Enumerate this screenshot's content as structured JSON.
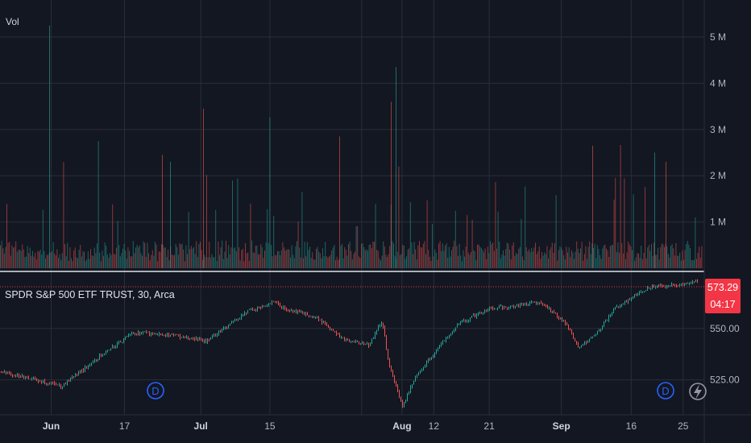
{
  "chart_data": [
    {
      "type": "bar",
      "title": "Vol",
      "y_ticks": [
        "1 M",
        "2 M",
        "3 M",
        "4 M",
        "5 M"
      ],
      "y_tick_values": [
        1000000,
        2000000,
        3000000,
        4000000,
        5000000
      ],
      "ylim": [
        0,
        5800000
      ],
      "grid": true
    },
    {
      "type": "candlestick",
      "title": "SPDR S&P 500 ETF TRUST, 30, Arca",
      "y_ticks": [
        "525.00",
        "550.00"
      ],
      "y_tick_values": [
        525,
        550
      ],
      "ylim": [
        508,
        577
      ],
      "last_price": "573.29",
      "countdown": "04:17",
      "x_ticks": [
        "Jun",
        "17",
        "Jul",
        "15",
        "Aug",
        "12",
        "21",
        "Sep",
        "16",
        "25"
      ],
      "anchors": [
        {
          "t": "May 28",
          "v": 529
        },
        {
          "t": "Jun 5",
          "v": 522
        },
        {
          "t": "Jun 12",
          "v": 536
        },
        {
          "t": "Jun 18",
          "v": 547
        },
        {
          "t": "Jun 20",
          "v": 548
        },
        {
          "t": "Jun 28",
          "v": 546
        },
        {
          "t": "Jul 2",
          "v": 544
        },
        {
          "t": "Jul 5",
          "v": 549
        },
        {
          "t": "Jul 10",
          "v": 558
        },
        {
          "t": "Jul 16",
          "v": 563
        },
        {
          "t": "Jul 17",
          "v": 560
        },
        {
          "t": "Jul 22",
          "v": 556
        },
        {
          "t": "Jul 26",
          "v": 545
        },
        {
          "t": "Jul 30",
          "v": 542
        },
        {
          "t": "Aug 1",
          "v": 554
        },
        {
          "t": "Aug 2",
          "v": 533
        },
        {
          "t": "Aug 5",
          "v": 512
        },
        {
          "t": "Aug 8",
          "v": 527
        },
        {
          "t": "Aug 12",
          "v": 538
        },
        {
          "t": "Aug 16",
          "v": 552
        },
        {
          "t": "Aug 21",
          "v": 560
        },
        {
          "t": "Aug 26",
          "v": 561
        },
        {
          "t": "Aug 30",
          "v": 563
        },
        {
          "t": "Sep 4",
          "v": 552
        },
        {
          "t": "Sep 6",
          "v": 541
        },
        {
          "t": "Sep 9",
          "v": 546
        },
        {
          "t": "Sep 13",
          "v": 560
        },
        {
          "t": "Sep 19",
          "v": 570
        },
        {
          "t": "Sep 26",
          "v": 572
        },
        {
          "t": "Sep 27",
          "v": 573.29
        }
      ]
    }
  ],
  "markers": {
    "dividend": "D"
  },
  "colors": {
    "background": "#131722",
    "grid": "#2a2e39",
    "up": "#26a69a",
    "down": "#ef5350",
    "text": "#d1d4dc",
    "axis_text": "#b2b5be",
    "separator": "#e0e3eb",
    "price_line": "#f23645",
    "dividend": "#2962ff",
    "lightning": "#9598a1"
  }
}
